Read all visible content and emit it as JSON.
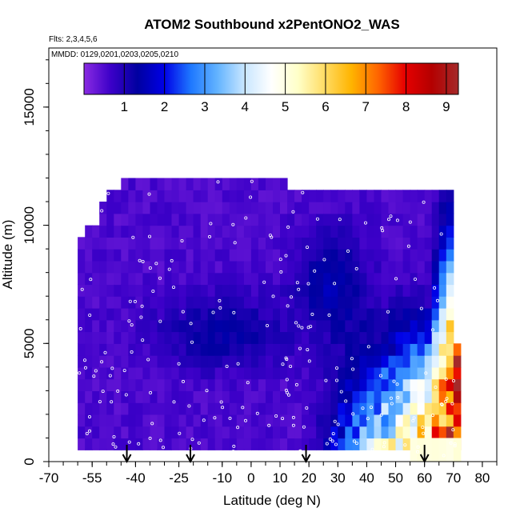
{
  "chart_data": {
    "type": "heatmap",
    "title": "ATOM2 Southbound x2PentONO2_WAS",
    "subtitle": "Flts: 2,3,4,5,6",
    "annotation": "MMDD: 0129,0201,0203,0205,0210",
    "xlabel": "Latitude (deg N)",
    "ylabel": "Altitude (m)",
    "xlim": [
      -70,
      85
    ],
    "ylim": [
      0,
      17500
    ],
    "x_tick_labels": [
      "-70",
      "-55",
      "-40",
      "-25",
      "-10",
      "0",
      "10",
      "20",
      "30",
      "40",
      "50",
      "60",
      "70",
      "80"
    ],
    "x_tick_values": [
      -70,
      -55,
      -40,
      -25,
      -10,
      0,
      10,
      20,
      30,
      40,
      50,
      60,
      70,
      80
    ],
    "y_tick_labels": [
      "0",
      "5000",
      "10000",
      "15000"
    ],
    "y_tick_values": [
      0,
      5000,
      10000,
      15000
    ],
    "colorbar": {
      "range": [
        0,
        9.3
      ],
      "tick_labels": [
        "1",
        "2",
        "3",
        "4",
        "5",
        "6",
        "7",
        "8",
        "9"
      ],
      "tick_values": [
        1,
        2,
        3,
        4,
        5,
        6,
        7,
        8,
        9
      ],
      "colors": [
        "#8a2be2",
        "#3c00c8",
        "#0000a0",
        "#0000e6",
        "#1e78ff",
        "#64b4ff",
        "#c8e6ff",
        "#ffffff",
        "#ffffc8",
        "#ffdc64",
        "#ffb400",
        "#ff6400",
        "#e60000",
        "#b40000",
        "#a52a2a"
      ]
    },
    "arrows_at_latitude": [
      -43,
      -21,
      19,
      60
    ],
    "grid": false,
    "legend_position": "top"
  }
}
